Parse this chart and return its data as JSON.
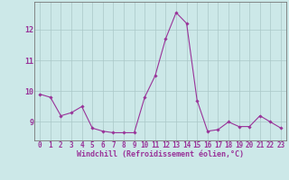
{
  "x": [
    0,
    1,
    2,
    3,
    4,
    5,
    6,
    7,
    8,
    9,
    10,
    11,
    12,
    13,
    14,
    15,
    16,
    17,
    18,
    19,
    20,
    21,
    22,
    23
  ],
  "y": [
    9.9,
    9.8,
    9.2,
    9.3,
    9.5,
    8.8,
    8.7,
    8.65,
    8.65,
    8.65,
    9.8,
    10.5,
    11.7,
    12.55,
    12.2,
    9.7,
    8.7,
    8.75,
    9.0,
    8.85,
    8.85,
    9.2,
    9.0,
    8.8
  ],
  "line_color": "#993399",
  "marker": "D",
  "marker_size": 1.8,
  "background_color": "#cce8e8",
  "grid_color": "#aac8c8",
  "xlabel": "Windchill (Refroidissement éolien,°C)",
  "xlabel_color": "#993399",
  "xlabel_fontsize": 6.0,
  "tick_color": "#993399",
  "tick_fontsize": 5.5,
  "yticks": [
    9,
    10,
    11,
    12
  ],
  "ylim": [
    8.4,
    12.9
  ],
  "xlim": [
    -0.5,
    23.5
  ],
  "xticks": [
    0,
    1,
    2,
    3,
    4,
    5,
    6,
    7,
    8,
    9,
    10,
    11,
    12,
    13,
    14,
    15,
    16,
    17,
    18,
    19,
    20,
    21,
    22,
    23
  ],
  "linewidth": 0.8
}
